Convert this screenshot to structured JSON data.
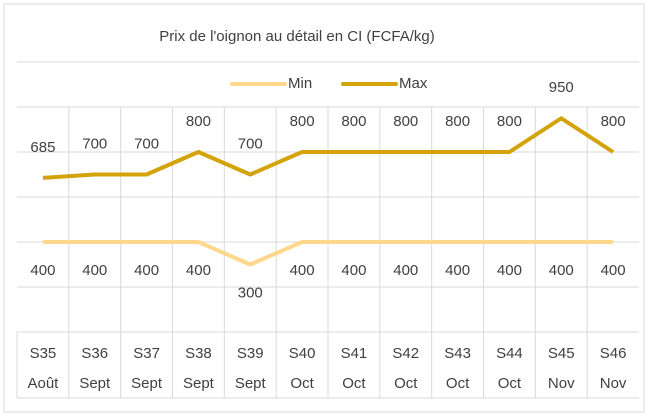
{
  "chart_data": {
    "type": "line",
    "title": "Prix de l'oignon au détail en CI (FCFA/kg)",
    "categories": [
      "S35",
      "S36",
      "S37",
      "S38",
      "S39",
      "S40",
      "S41",
      "S42",
      "S43",
      "S44",
      "S45",
      "S46"
    ],
    "category_months": [
      "Août",
      "Sept",
      "Sept",
      "Sept",
      "Sept",
      "Oct",
      "Oct",
      "Oct",
      "Oct",
      "Oct",
      "Nov",
      "Nov"
    ],
    "series": [
      {
        "name": "Min",
        "color": "#ffd78c",
        "values": [
          400,
          400,
          400,
          400,
          300,
          400,
          400,
          400,
          400,
          400,
          400,
          400
        ]
      },
      {
        "name": "Max",
        "color": "#d4a30a",
        "values": [
          685,
          700,
          700,
          800,
          700,
          800,
          800,
          800,
          800,
          800,
          950,
          800
        ]
      }
    ],
    "ylim": [
      0,
      1200
    ],
    "yticks": [
      0,
      200,
      400,
      600,
      800,
      1000,
      1200
    ],
    "grid": true
  }
}
